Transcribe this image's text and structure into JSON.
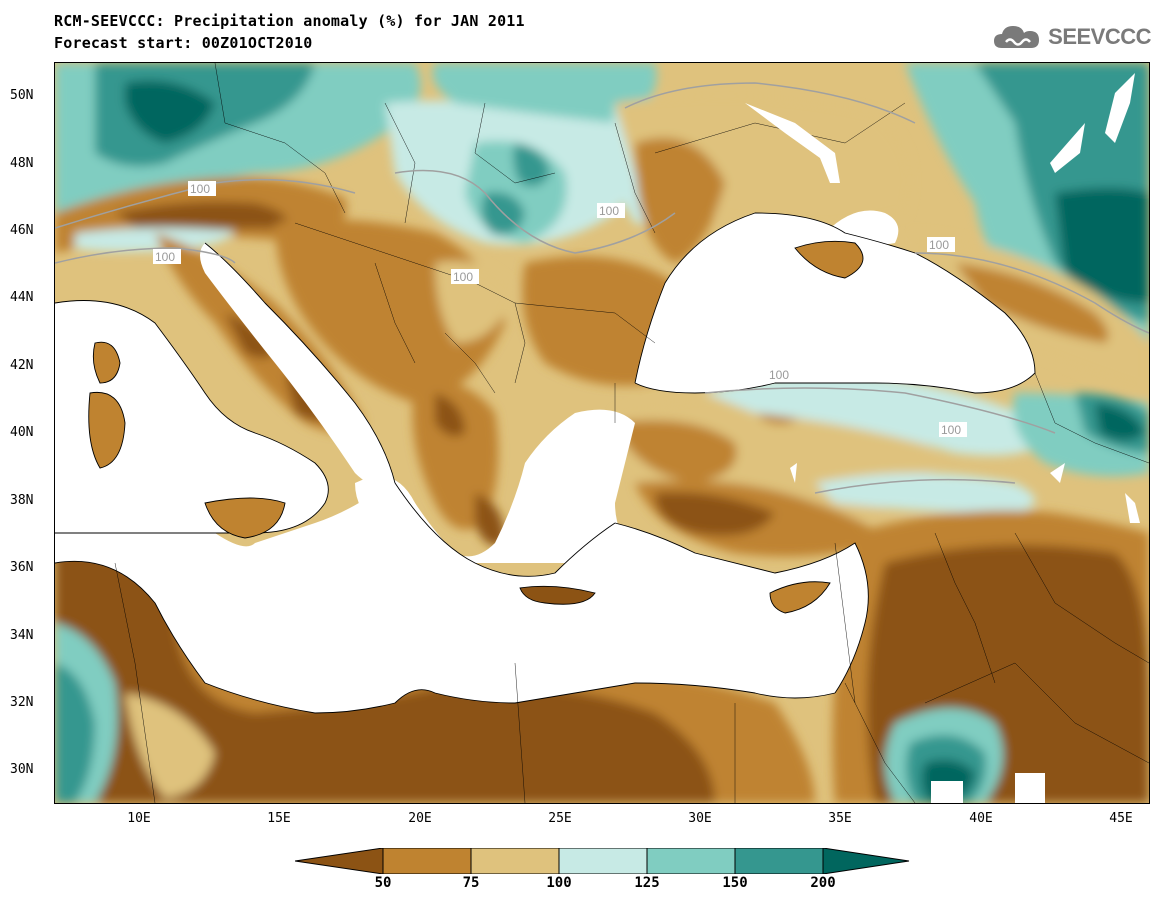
{
  "title": {
    "line1": "RCM-SEEVCCC: Precipitation anomaly (%) for JAN 2011",
    "line2": "Forecast start: 00Z01OCT2010"
  },
  "logo": {
    "text": "SEEVCCC",
    "icon": "cloud-logo-icon"
  },
  "axes": {
    "lat_labels": [
      "50N",
      "48N",
      "46N",
      "44N",
      "42N",
      "40N",
      "38N",
      "36N",
      "34N",
      "32N",
      "30N"
    ],
    "lon_labels": [
      "10E",
      "15E",
      "20E",
      "25E",
      "30E",
      "35E",
      "40E",
      "45E"
    ]
  },
  "contour_label": "100",
  "colorbar": {
    "labels": [
      "50",
      "75",
      "100",
      "125",
      "150",
      "200"
    ],
    "colors": [
      "#8c5314",
      "#bf8330",
      "#dfc27d",
      "#c7eae5",
      "#80cdc1",
      "#35978f",
      "#01665e"
    ]
  },
  "palette": {
    "very_dry": "#8c5314",
    "dry": "#bf8330",
    "slightly_dry": "#dfc27d",
    "slightly_wet": "#c7eae5",
    "wet": "#80cdc1",
    "very_wet": "#35978f",
    "extreme_wet": "#01665e",
    "sea": "#ffffff",
    "contour_line": "#a0a0a0"
  }
}
